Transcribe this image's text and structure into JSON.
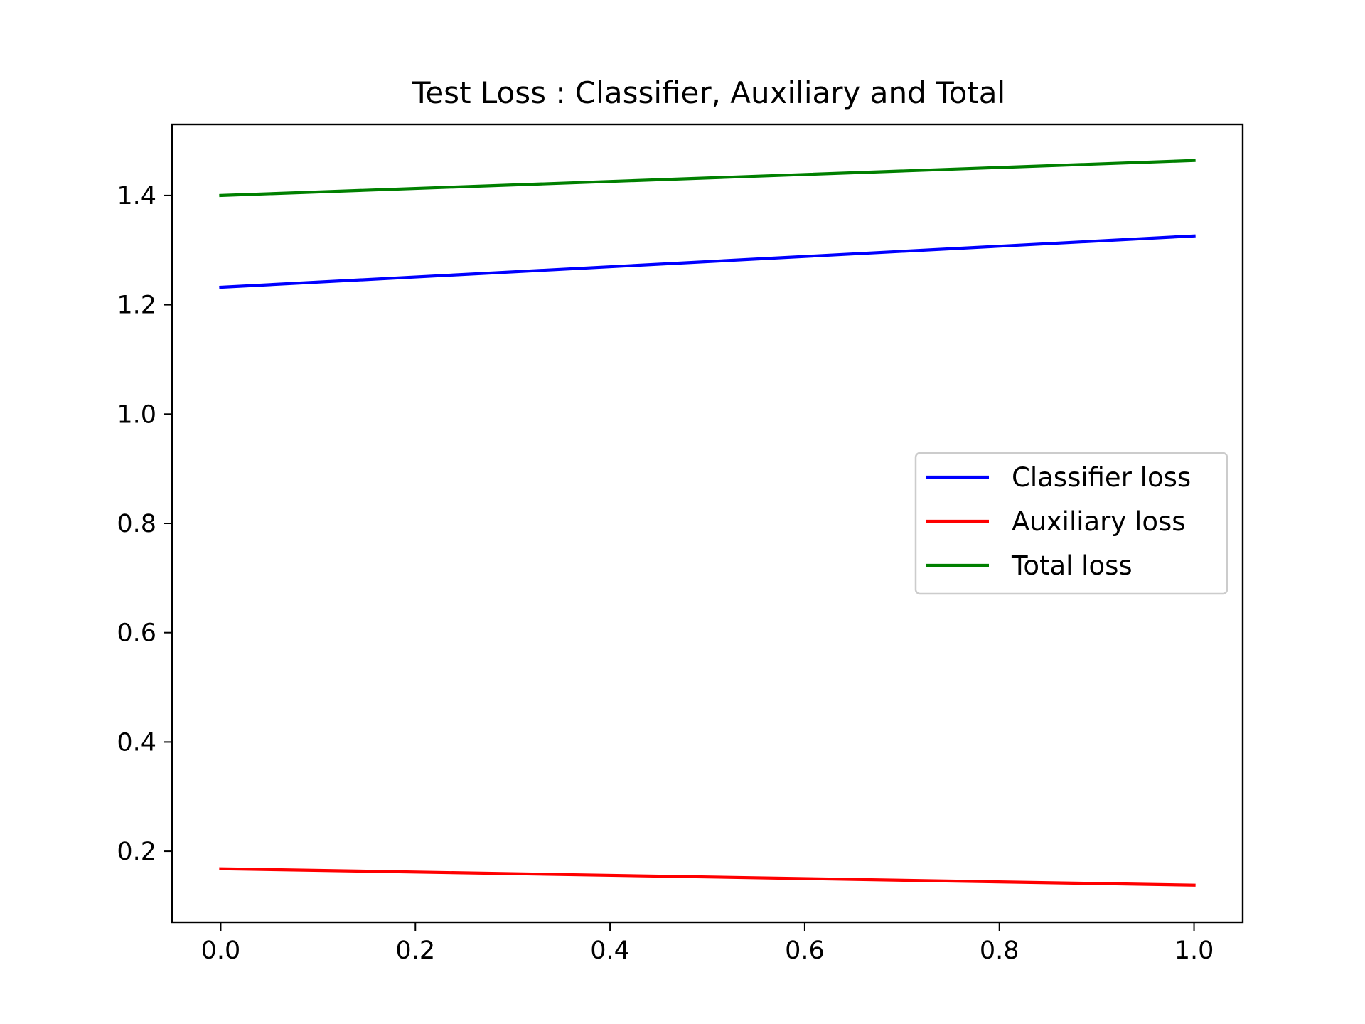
{
  "chart_data": {
    "type": "line",
    "title": "Test Loss : Classifier, Auxiliary and Total",
    "xlabel": "",
    "ylabel": "",
    "x": [
      0.0,
      1.0
    ],
    "xlim": [
      -0.05,
      1.05
    ],
    "ylim": [
      0.07,
      1.53
    ],
    "xticks": [
      0.0,
      0.2,
      0.4,
      0.6,
      0.8,
      1.0
    ],
    "xtick_labels": [
      "0.0",
      "0.2",
      "0.4",
      "0.6",
      "0.8",
      "1.0"
    ],
    "yticks": [
      0.2,
      0.4,
      0.6,
      0.8,
      1.0,
      1.2,
      1.4
    ],
    "ytick_labels": [
      "0.2",
      "0.4",
      "0.6",
      "0.8",
      "1.0",
      "1.2",
      "1.4"
    ],
    "grid": false,
    "legend_position": "center-right",
    "series": [
      {
        "name": "Classifier loss",
        "color": "#0000ff",
        "values": [
          1.232,
          1.326
        ]
      },
      {
        "name": "Auxiliary loss",
        "color": "#ff0000",
        "values": [
          0.168,
          0.138
        ]
      },
      {
        "name": "Total loss",
        "color": "#008000",
        "values": [
          1.4,
          1.464
        ]
      }
    ]
  }
}
